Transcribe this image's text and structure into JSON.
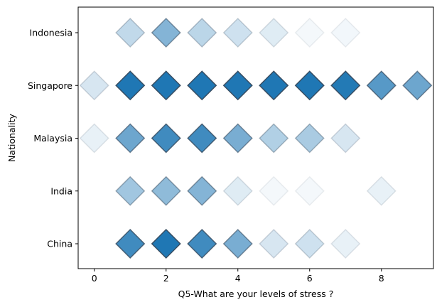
{
  "chart_data": {
    "type": "scatter",
    "marker": "diamond",
    "color": "#1f77b4",
    "edge_color": "#34495e",
    "xlabel": "Q5-What are your levels of stress ?",
    "ylabel": "Nationality",
    "xlim": [
      -0.45,
      9.45
    ],
    "x_ticks": [
      0,
      2,
      4,
      6,
      8
    ],
    "categories": [
      "China",
      "India",
      "Malaysia",
      "Singapore",
      "Indonesia"
    ],
    "grid": false,
    "legend": "none",
    "points": [
      {
        "category": "Indonesia",
        "x": 1,
        "opacity": 0.28
      },
      {
        "category": "Indonesia",
        "x": 2,
        "opacity": 0.55
      },
      {
        "category": "Indonesia",
        "x": 3,
        "opacity": 0.3
      },
      {
        "category": "Indonesia",
        "x": 4,
        "opacity": 0.22
      },
      {
        "category": "Indonesia",
        "x": 5,
        "opacity": 0.14
      },
      {
        "category": "Indonesia",
        "x": 6,
        "opacity": 0.05
      },
      {
        "category": "Indonesia",
        "x": 7,
        "opacity": 0.06
      },
      {
        "category": "Singapore",
        "x": 0,
        "opacity": 0.18
      },
      {
        "category": "Singapore",
        "x": 1,
        "opacity": 1.0
      },
      {
        "category": "Singapore",
        "x": 2,
        "opacity": 1.0
      },
      {
        "category": "Singapore",
        "x": 3,
        "opacity": 1.0
      },
      {
        "category": "Singapore",
        "x": 4,
        "opacity": 1.0
      },
      {
        "category": "Singapore",
        "x": 5,
        "opacity": 1.0
      },
      {
        "category": "Singapore",
        "x": 6,
        "opacity": 1.0
      },
      {
        "category": "Singapore",
        "x": 7,
        "opacity": 0.98
      },
      {
        "category": "Singapore",
        "x": 8,
        "opacity": 0.75
      },
      {
        "category": "Singapore",
        "x": 9,
        "opacity": 0.65
      },
      {
        "category": "Malaysia",
        "x": 0,
        "opacity": 0.1
      },
      {
        "category": "Malaysia",
        "x": 1,
        "opacity": 0.65
      },
      {
        "category": "Malaysia",
        "x": 2,
        "opacity": 0.85
      },
      {
        "category": "Malaysia",
        "x": 3,
        "opacity": 0.85
      },
      {
        "category": "Malaysia",
        "x": 4,
        "opacity": 0.6
      },
      {
        "category": "Malaysia",
        "x": 5,
        "opacity": 0.35
      },
      {
        "category": "Malaysia",
        "x": 6,
        "opacity": 0.38
      },
      {
        "category": "Malaysia",
        "x": 7,
        "opacity": 0.18
      },
      {
        "category": "India",
        "x": 1,
        "opacity": 0.42
      },
      {
        "category": "India",
        "x": 2,
        "opacity": 0.5
      },
      {
        "category": "India",
        "x": 3,
        "opacity": 0.55
      },
      {
        "category": "India",
        "x": 4,
        "opacity": 0.14
      },
      {
        "category": "India",
        "x": 5,
        "opacity": 0.05
      },
      {
        "category": "India",
        "x": 6,
        "opacity": 0.05
      },
      {
        "category": "India",
        "x": 8,
        "opacity": 0.1
      },
      {
        "category": "China",
        "x": 1,
        "opacity": 0.85
      },
      {
        "category": "China",
        "x": 2,
        "opacity": 1.0
      },
      {
        "category": "China",
        "x": 3,
        "opacity": 0.85
      },
      {
        "category": "China",
        "x": 4,
        "opacity": 0.6
      },
      {
        "category": "China",
        "x": 5,
        "opacity": 0.18
      },
      {
        "category": "China",
        "x": 6,
        "opacity": 0.22
      },
      {
        "category": "China",
        "x": 7,
        "opacity": 0.1
      }
    ]
  }
}
